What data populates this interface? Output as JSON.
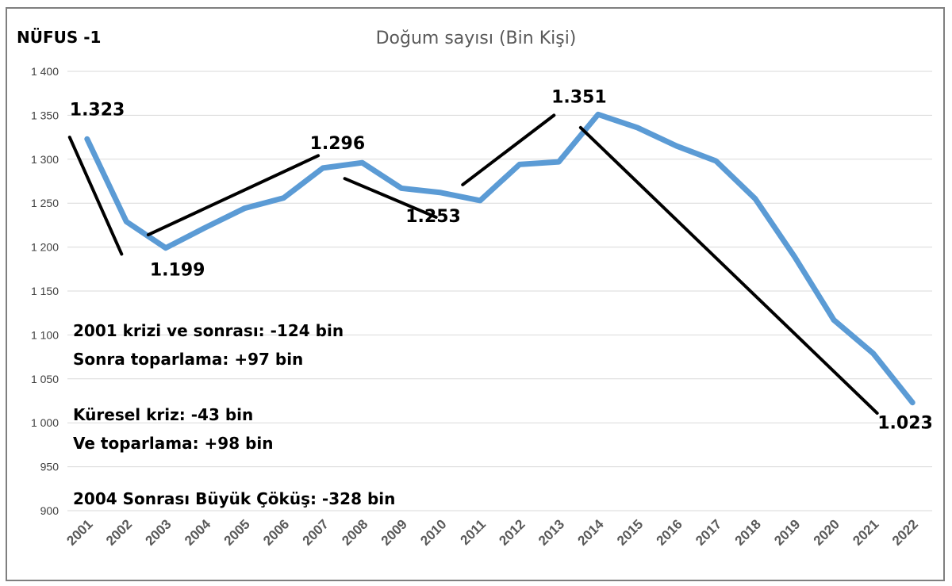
{
  "header": {
    "tag": "NÜFUS -1"
  },
  "chart_data": {
    "type": "line",
    "title": "Doğum sayısı (Bin Kişi)",
    "xlabel": "",
    "ylabel": "",
    "ylim": [
      900,
      1400
    ],
    "yticks": [
      900,
      950,
      1000,
      1050,
      1100,
      1150,
      1200,
      1250,
      1300,
      1350,
      1400
    ],
    "ytick_labels": [
      "900",
      "950",
      "1 000",
      "1 050",
      "1 100",
      "1 150",
      "1 200",
      "1 250",
      "1 300",
      "1 350",
      "1 400"
    ],
    "categories": [
      "2001",
      "2002",
      "2003",
      "2004",
      "2005",
      "2006",
      "2007",
      "2008",
      "2009",
      "2010",
      "2011",
      "2012",
      "2013",
      "2014",
      "2015",
      "2016",
      "2017",
      "2018",
      "2019",
      "2020",
      "2021",
      "2022"
    ],
    "series": [
      {
        "values": [
          1323,
          1229,
          1199,
          1222,
          1244,
          1256,
          1290,
          1296,
          1267,
          1262,
          1253,
          1294,
          1297,
          1351,
          1336,
          1315,
          1298,
          1255,
          1189,
          1117,
          1079,
          1023
        ],
        "color": "#5b9bd5"
      }
    ],
    "grid": true,
    "legend": "none",
    "data_labels": [
      {
        "category": "2001",
        "text": "1.323"
      },
      {
        "category": "2003",
        "text": "1.199"
      },
      {
        "category": "2008",
        "text": "1.296"
      },
      {
        "category": "2011",
        "text": "1.253"
      },
      {
        "category": "2014",
        "text": "1.351"
      },
      {
        "category": "2022",
        "text": "1.023"
      }
    ],
    "trend_lines": [
      {
        "from": [
          "2001",
          1325
        ],
        "to": [
          "2002",
          1192
        ]
      },
      {
        "from": [
          "2003",
          1214
        ],
        "to": [
          "2007",
          1304
        ]
      },
      {
        "from": [
          "2008",
          1278
        ],
        "to": [
          "2010",
          1234
        ]
      },
      {
        "from": [
          "2011",
          1271
        ],
        "to": [
          "2013",
          1350
        ]
      },
      {
        "from": [
          "2014",
          1336
        ],
        "to": [
          "2021",
          1011
        ]
      }
    ],
    "trend_color": "#000000",
    "annotations": [
      "2001 krizi ve sonrası: -124 bin",
      "Sonra toparlama: +97 bin",
      "Küresel kriz: -43 bin",
      "Ve toparlama: +98 bin",
      "2004 Sonrası Büyük Çöküş: -328 bin"
    ]
  }
}
